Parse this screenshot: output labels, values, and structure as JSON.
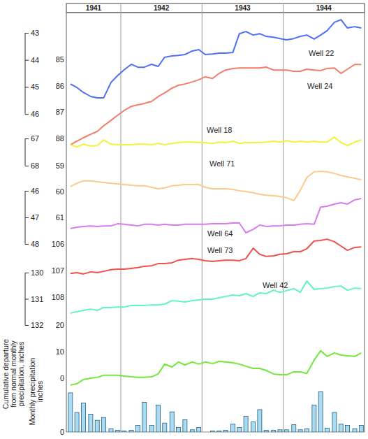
{
  "chart_data": {
    "type": "line",
    "x": [
      1941.38,
      1941.46,
      1941.54,
      1941.63,
      1941.71,
      1941.79,
      1941.88,
      1941.96,
      1942.04,
      1942.13,
      1942.21,
      1942.29,
      1942.38,
      1942.46,
      1942.54,
      1942.63,
      1942.71,
      1942.79,
      1942.88,
      1942.96,
      1943.04,
      1943.13,
      1943.21,
      1943.29,
      1943.38,
      1943.46,
      1943.54,
      1943.63,
      1943.71,
      1943.79,
      1943.88,
      1943.96,
      1944.04,
      1944.13,
      1944.21,
      1944.29,
      1944.38,
      1944.46,
      1944.54,
      1944.63,
      1944.71,
      1944.79,
      1944.88,
      1944.96
    ],
    "xlim": [
      1941.33,
      1945
    ],
    "year_bands": [
      {
        "label": "1941",
        "from": 1941.33,
        "to": 1942
      },
      {
        "label": "1942",
        "from": 1942,
        "to": 1943
      },
      {
        "label": "1943",
        "from": 1943,
        "to": 1944
      },
      {
        "label": "1944",
        "from": 1944,
        "to": 1945
      }
    ],
    "series": [
      {
        "name": "Well 22",
        "color": "#4f6ef7",
        "axis": "y",
        "ylim": [
          57.75,
          42.25
        ],
        "yticks": [
          43,
          44,
          45,
          46
        ],
        "values": [
          44.89,
          45.02,
          45.2,
          45.35,
          45.4,
          45.4,
          44.83,
          44.58,
          44.37,
          44.16,
          44.27,
          44.27,
          44.16,
          44.24,
          43.9,
          43.85,
          43.83,
          43.8,
          43.67,
          43.62,
          43.8,
          43.78,
          43.75,
          43.75,
          43.72,
          43.03,
          42.95,
          43.08,
          43.03,
          43.13,
          43.16,
          43.21,
          43.26,
          43.21,
          43.13,
          43.08,
          43.23,
          43.08,
          42.92,
          42.61,
          42.51,
          42.82,
          42.77,
          42.82
        ]
      },
      {
        "name": "Well 24",
        "color": "#f47c6a",
        "axis": "y2",
        "ylim": [
          99.14,
          83.22
        ],
        "yticks": [
          85,
          86,
          87,
          88
        ],
        "values": [
          88.24,
          88.1,
          87.97,
          87.84,
          87.73,
          87.52,
          87.31,
          87.12,
          86.94,
          86.78,
          86.72,
          86.67,
          86.59,
          86.41,
          86.27,
          86.09,
          85.98,
          85.93,
          85.85,
          85.77,
          85.66,
          85.72,
          85.53,
          85.4,
          85.34,
          85.32,
          85.32,
          85.32,
          85.32,
          85.29,
          85.4,
          85.4,
          85.4,
          85.45,
          85.45,
          85.37,
          85.4,
          85.42,
          85.34,
          85.32,
          85.53,
          85.37,
          85.19,
          85.19
        ]
      },
      {
        "name": "Well 18",
        "color": "#f2f23c",
        "axis": "y",
        "ylim": [
          77.77,
          62.38
        ],
        "yticks": [
          67,
          68
        ],
        "values": [
          67.23,
          67.31,
          67.21,
          67.28,
          67.26,
          67.05,
          67.21,
          67.23,
          67.23,
          67.23,
          67.21,
          67.21,
          67.23,
          67.18,
          67.23,
          67.18,
          67.15,
          67.13,
          67.13,
          67.15,
          67.15,
          67.18,
          67.13,
          67.15,
          67.1,
          67.18,
          67.15,
          67.15,
          67.15,
          67.13,
          67.1,
          67.13,
          67.08,
          67.13,
          67.1,
          67.13,
          67.1,
          67.13,
          67.13,
          66.95,
          67.15,
          67.26,
          67.13,
          67.05
        ]
      },
      {
        "name": "Well 71",
        "color": "#fcc98a",
        "axis": "y2",
        "ylim": [
          69.3,
          53.08
        ],
        "yticks": [
          59,
          60,
          61
        ],
        "values": [
          59.81,
          59.68,
          59.59,
          59.59,
          59.62,
          59.65,
          59.68,
          59.7,
          59.73,
          59.76,
          59.78,
          59.78,
          59.84,
          59.89,
          59.86,
          59.78,
          59.76,
          59.73,
          59.73,
          59.73,
          59.84,
          59.89,
          59.89,
          59.89,
          59.92,
          59.97,
          60.0,
          60.05,
          60.11,
          60.14,
          60.16,
          60.19,
          60.24,
          60.35,
          59.95,
          59.46,
          59.24,
          59.22,
          59.24,
          59.3,
          59.38,
          59.43,
          59.49,
          59.54
        ]
      },
      {
        "name": "Well 64",
        "color": "#d77bf0",
        "axis": "y",
        "ylim": [
          55.08,
          39.29
        ],
        "yticks": [
          46,
          47,
          48
        ],
        "values": [
          47.42,
          47.37,
          47.34,
          47.32,
          47.34,
          47.32,
          47.32,
          47.24,
          47.26,
          47.29,
          47.32,
          47.26,
          47.26,
          47.29,
          47.26,
          47.29,
          47.29,
          47.26,
          47.26,
          47.26,
          47.26,
          47.24,
          47.24,
          47.24,
          47.21,
          47.21,
          47.58,
          47.45,
          47.29,
          47.34,
          47.32,
          47.32,
          47.29,
          47.29,
          47.26,
          47.24,
          47.26,
          46.61,
          46.58,
          46.5,
          46.45,
          46.5,
          46.34,
          46.29
        ]
      },
      {
        "name": "Well 73",
        "color": "#f0524a",
        "axis": "y2",
        "ylim": [
          113.08,
          97.29
        ],
        "yticks": [
          106,
          107,
          108
        ],
        "values": [
          107.11,
          107.08,
          107.13,
          107.05,
          107.08,
          107.03,
          106.97,
          106.95,
          106.95,
          106.92,
          106.89,
          106.84,
          106.82,
          106.74,
          106.74,
          106.71,
          106.61,
          106.58,
          106.55,
          106.58,
          106.63,
          106.66,
          106.63,
          106.61,
          106.61,
          106.63,
          106.55,
          106.16,
          106.39,
          106.47,
          106.45,
          106.39,
          106.37,
          106.29,
          106.29,
          106.18,
          105.89,
          105.87,
          105.82,
          105.92,
          106.08,
          106.24,
          106.13,
          106.11
        ]
      },
      {
        "name": "Well 42",
        "color": "#5ff2c5",
        "axis": "y",
        "ylim": [
          136.08,
          120.08
        ],
        "yticks": [
          130,
          131,
          132
        ],
        "values": [
          131.55,
          131.49,
          131.44,
          131.39,
          131.44,
          131.33,
          131.33,
          131.31,
          131.31,
          131.25,
          131.25,
          131.25,
          131.23,
          131.23,
          131.2,
          131.07,
          131.09,
          131.12,
          131.07,
          131.04,
          131.01,
          131.01,
          130.96,
          130.91,
          130.85,
          130.88,
          130.8,
          130.91,
          130.77,
          130.8,
          130.67,
          130.75,
          130.69,
          130.61,
          130.75,
          130.32,
          130.64,
          130.61,
          130.59,
          130.53,
          130.51,
          130.67,
          130.59,
          130.61
        ]
      },
      {
        "type": "line",
        "color": "#72e83a",
        "axis": "y2",
        "ylim": [
          -20.26,
          137.63
        ],
        "yticks": [
          0,
          10,
          20
        ],
        "ylabel": [
          "Cumulative departure",
          "from normal monthly",
          "precipitation, inches"
        ],
        "values": [
          -2.6,
          -2.1,
          -0.5,
          0,
          0.3,
          1.1,
          1.1,
          1.1,
          0.8,
          0.5,
          0.3,
          0.3,
          0.5,
          1.6,
          5.3,
          4.2,
          6.1,
          5.0,
          6.1,
          5.3,
          6.1,
          5.5,
          6.3,
          6.1,
          5.8,
          5.3,
          4.5,
          3.7,
          3.7,
          2.9,
          1.6,
          1.3,
          1.3,
          2.4,
          2.4,
          1.8,
          6.8,
          10.3,
          8.2,
          9.5,
          8.7,
          8.4,
          8.2,
          9.5
        ]
      },
      {
        "type": "bar",
        "color": "#a9dcf2",
        "axis": "y2",
        "ylim": [
          0,
          75
        ],
        "yticks": [
          0
        ],
        "ylabel": [
          "Monthly precipitation",
          "inches"
        ],
        "values": [
          7.0,
          3.5,
          5.2,
          3.2,
          2.1,
          2.6,
          0.6,
          0.3,
          0.2,
          0.3,
          1.2,
          5.3,
          1.2,
          4.8,
          1.6,
          3.6,
          0.8,
          2.2,
          0.4,
          0.8,
          0,
          0.2,
          0.2,
          0.3,
          1.4,
          0.8,
          2.8,
          1.8,
          4.0,
          0.3,
          0.3,
          0.4,
          0.4,
          1.3,
          0.4,
          0.6,
          4.8,
          7.2,
          0.7,
          3.5,
          1.4,
          1.2,
          0.6,
          1.2
        ]
      }
    ]
  }
}
